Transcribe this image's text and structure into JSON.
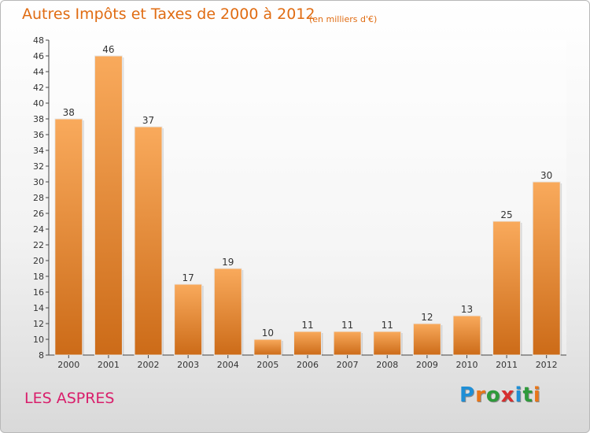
{
  "title": "Autres Impôts et Taxes de 2000 à 2012",
  "unit": "(en milliers d'€)",
  "commune": "LES ASPRES",
  "logo": {
    "text": "Proxiti",
    "letter_colors": [
      "#1f8fd6",
      "#e8761a",
      "#2e9a3a",
      "#d62f2f",
      "#1f8fd6",
      "#2e9a3a",
      "#e8761a"
    ]
  },
  "colors": {
    "bar_light": "#f9aa5c",
    "bar_dark": "#cc6b18",
    "text": "#333333",
    "title": "#e06c12",
    "commune": "#d91e6b"
  },
  "chart_data": {
    "type": "bar",
    "categories": [
      "2000",
      "2001",
      "2002",
      "2003",
      "2004",
      "2005",
      "2006",
      "2007",
      "2008",
      "2009",
      "2010",
      "2011",
      "2012"
    ],
    "values": [
      38,
      46,
      37,
      17,
      19,
      10,
      11,
      11,
      11,
      12,
      13,
      25,
      30
    ],
    "ylim": [
      8,
      48
    ],
    "yticks": [
      8,
      10,
      12,
      14,
      16,
      18,
      20,
      22,
      24,
      26,
      28,
      30,
      32,
      34,
      36,
      38,
      40,
      42,
      44,
      46,
      48
    ],
    "grid": false,
    "data_labels": true
  }
}
